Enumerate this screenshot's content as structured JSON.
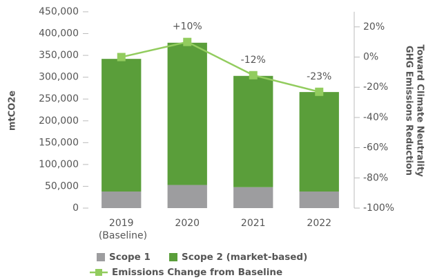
{
  "chart_data": {
    "type": "bar",
    "categories": [
      "2019 (Baseline)",
      "2020",
      "2021",
      "2022"
    ],
    "series": [
      {
        "name": "Scope 1",
        "color": "#9d9d9f",
        "values": [
          38000,
          53000,
          48000,
          38000
        ]
      },
      {
        "name": "Scope 2 (market-based)",
        "color": "#5a9e3a",
        "values": [
          304000,
          326000,
          255000,
          228000
        ]
      },
      {
        "name": "Emissions Change from Baseline",
        "color": "#92cc5e",
        "axis": "y2",
        "type": "line",
        "values": [
          0,
          10,
          -12,
          -23
        ],
        "value_labels": [
          null,
          "+10%",
          "-12%",
          "-23%"
        ]
      }
    ],
    "stacked": true,
    "y_label": "mtCO2e",
    "y2_label": [
      "GHG Emissions Reduction",
      "Toward Climate Neutrality"
    ],
    "ylim": [
      0,
      450000
    ],
    "yticks": [
      0,
      {
        "value": 50000,
        "label": "50,000"
      },
      {
        "value": 100000,
        "label": "100,000"
      },
      {
        "value": 150000,
        "label": "150,000"
      },
      {
        "value": 200000,
        "label": "200,000"
      },
      {
        "value": 250000,
        "label": "250,000"
      },
      {
        "value": 300000,
        "label": "300,000"
      },
      {
        "value": 350000,
        "label": "350,000"
      },
      {
        "value": 400000,
        "label": "400,000"
      },
      {
        "value": 450000,
        "label": "450,000"
      }
    ],
    "y2lim": [
      -100,
      30
    ],
    "y2ticks": [
      {
        "value": -100,
        "label": "-100%"
      },
      {
        "value": -80,
        "label": "-80%"
      },
      {
        "value": -60,
        "label": "-60%"
      },
      {
        "value": -40,
        "label": "-40%"
      },
      {
        "value": -20,
        "label": "-20%"
      },
      {
        "value": 0,
        "label": "0%"
      },
      {
        "value": 20,
        "label": "20%"
      }
    ],
    "grid": false,
    "legend": "bottom"
  }
}
